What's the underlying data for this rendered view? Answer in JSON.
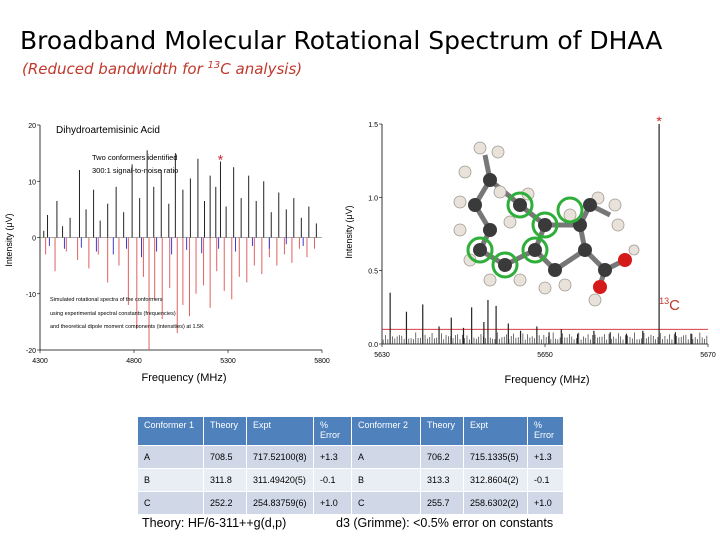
{
  "title": "Broadband Molecular Rotational Spectrum of DHAA",
  "subtitle_pre": "(Reduced bandwidth for ",
  "subtitle_sup": "13",
  "subtitle_post": "C analysis)",
  "colors": {
    "title": "#000000",
    "subtitle": "#c0392b",
    "expt": "#222222",
    "sim_conf1": "#e06060",
    "sim_conf2": "#3b3bd6",
    "marker": "#d0202a",
    "table_header": "#4f81bd"
  },
  "chart_data": [
    {
      "type": "line",
      "panel": "full-spectrum",
      "xlabel": "Frequency (MHz)",
      "ylabel": "Intensity (μV)",
      "xlim": [
        4300,
        5800
      ],
      "ylim": [
        -20,
        20
      ],
      "xticks": [
        "4300",
        "4800",
        "5300",
        "5800"
      ],
      "yticks": [
        "20",
        "10",
        "0",
        "-10",
        "-20"
      ],
      "annotations": {
        "title": "Dihydroartemisinic Acid",
        "note1": "Two conformers identified",
        "note2": "300:1 signal-to-noise ratio",
        "sim1": "Simulated rotational spectra of the conformers",
        "sim2": "using experimental spectral constants (frequencies)",
        "sim3": "and theoretical dipole moment components (intensities) at 1.5K",
        "marker": "*"
      },
      "marker_x": 5260,
      "series": [
        {
          "values": [
            [
              4320,
              1.2
            ],
            [
              4340,
              4.0
            ],
            [
              4390,
              6.5
            ],
            [
              4420,
              2.0
            ],
            [
              4460,
              3.5
            ],
            [
              4510,
              12.0
            ],
            [
              4545,
              5.0
            ],
            [
              4585,
              8.5
            ],
            [
              4620,
              3.0
            ],
            [
              4660,
              6.0
            ],
            [
              4705,
              9.0
            ],
            [
              4745,
              4.5
            ],
            [
              4790,
              13.0
            ],
            [
              4830,
              7.0
            ],
            [
              4870,
              15.5
            ],
            [
              4905,
              9.0
            ],
            [
              4945,
              12.0
            ],
            [
              4985,
              6.0
            ],
            [
              5020,
              15.0
            ],
            [
              5060,
              8.5
            ],
            [
              5100,
              10.5
            ],
            [
              5140,
              14.0
            ],
            [
              5175,
              6.5
            ],
            [
              5205,
              11.0
            ],
            [
              5235,
              9.0
            ],
            [
              5260,
              13.5
            ],
            [
              5290,
              5.5
            ],
            [
              5330,
              12.5
            ],
            [
              5370,
              7.0
            ],
            [
              5410,
              11.0
            ],
            [
              5450,
              6.5
            ],
            [
              5490,
              10.0
            ],
            [
              5530,
              4.5
            ],
            [
              5570,
              8.0
            ],
            [
              5610,
              5.0
            ],
            [
              5650,
              7.0
            ],
            [
              5690,
              3.5
            ],
            [
              5730,
              5.5
            ],
            [
              5770,
              2.5
            ]
          ]
        },
        {
          "values": [
            [
              4330,
              -3.0
            ],
            [
              4380,
              -6.0
            ],
            [
              4440,
              -2.5
            ],
            [
              4500,
              -4.0
            ],
            [
              4560,
              -5.5
            ],
            [
              4610,
              -3.0
            ],
            [
              4660,
              -8.0
            ],
            [
              4720,
              -5.0
            ],
            [
              4770,
              -12.0
            ],
            [
              4815,
              -16.0
            ],
            [
              4850,
              -7.0
            ],
            [
              4880,
              -20.0
            ],
            [
              4910,
              -11.0
            ],
            [
              4950,
              -14.5
            ],
            [
              4990,
              -9.0
            ],
            [
              5030,
              -17.0
            ],
            [
              5060,
              -12.0
            ],
            [
              5095,
              -14.0
            ],
            [
              5130,
              -10.0
            ],
            [
              5170,
              -8.5
            ],
            [
              5205,
              -12.5
            ],
            [
              5240,
              -6.0
            ],
            [
              5280,
              -9.5
            ],
            [
              5320,
              -11.0
            ],
            [
              5360,
              -7.0
            ],
            [
              5400,
              -8.0
            ],
            [
              5440,
              -5.0
            ],
            [
              5480,
              -6.5
            ],
            [
              5520,
              -3.5
            ],
            [
              5560,
              -5.0
            ],
            [
              5600,
              -3.0
            ],
            [
              5640,
              -4.5
            ],
            [
              5680,
              -2.0
            ],
            [
              5720,
              -3.5
            ],
            [
              5760,
              -2.0
            ]
          ]
        },
        {
          "values": [
            [
              4350,
              -1.5
            ],
            [
              4430,
              -2.0
            ],
            [
              4520,
              -1.8
            ],
            [
              4600,
              -2.5
            ],
            [
              4690,
              -3.0
            ],
            [
              4760,
              -2.0
            ],
            [
              4840,
              -3.5
            ],
            [
              4920,
              -2.5
            ],
            [
              5000,
              -3.0
            ],
            [
              5080,
              -2.2
            ],
            [
              5160,
              -2.8
            ],
            [
              5250,
              -2.0
            ],
            [
              5340,
              -2.5
            ],
            [
              5430,
              -1.5
            ],
            [
              5520,
              -2.0
            ],
            [
              5610,
              -1.2
            ],
            [
              5700,
              -1.5
            ]
          ]
        }
      ]
    },
    {
      "type": "line",
      "panel": "13C-zoom",
      "xlabel": "Frequency (MHz)",
      "ylabel": "Intensity (μV)",
      "xlim": [
        5630,
        5670
      ],
      "ylim": [
        0.0,
        1.5
      ],
      "xticks": [
        "5630",
        "5650",
        "5670"
      ],
      "yticks": [
        "1.5",
        "1.0",
        "0.5",
        "0.0"
      ],
      "threshold": 0.1,
      "label": "13C",
      "label_sup": "13",
      "label_main": "C",
      "marker": "*",
      "marker_x": 5664,
      "series": [
        {
          "values": [
            [
              5631,
              0.35
            ],
            [
              5633,
              0.22
            ],
            [
              5635,
              0.27
            ],
            [
              5637,
              0.12
            ],
            [
              5638.5,
              0.18
            ],
            [
              5640,
              0.11
            ],
            [
              5641,
              0.25
            ],
            [
              5642.5,
              0.15
            ],
            [
              5643,
              0.3
            ],
            [
              5644,
              0.26
            ],
            [
              5645.5,
              0.14
            ],
            [
              5647,
              0.09
            ],
            [
              5649,
              0.12
            ],
            [
              5650.5,
              0.08
            ],
            [
              5652,
              0.1
            ],
            [
              5654,
              0.07
            ],
            [
              5656,
              0.09
            ],
            [
              5658,
              0.08
            ],
            [
              5660,
              0.07
            ],
            [
              5662,
              0.09
            ],
            [
              5664,
              1.5
            ],
            [
              5666,
              0.08
            ],
            [
              5668,
              0.07
            ]
          ]
        }
      ]
    }
  ],
  "table": {
    "headers": [
      "Conformer 1",
      "Theory",
      "Expt",
      "% Error",
      "Conformer 2",
      "Theory",
      "Expt",
      "% Error"
    ],
    "rows": [
      [
        "A",
        "708.5",
        "717.52100(8)",
        "+1.3",
        "A",
        "706.2",
        "715.1335(5)",
        "+1.3"
      ],
      [
        "B",
        "311.8",
        "311.49420(5)",
        "-0.1",
        "B",
        "313.3",
        "312.8604(2)",
        "-0.1"
      ],
      [
        "C",
        "252.2",
        "254.83759(6)",
        "+1.0",
        "C",
        "255.7",
        "258.6302(2)",
        "+1.0"
      ]
    ]
  },
  "footer_left": "Theory: HF/6-311++g(d,p)",
  "footer_right": "d3 (Grimme): <0.5% error on constants"
}
